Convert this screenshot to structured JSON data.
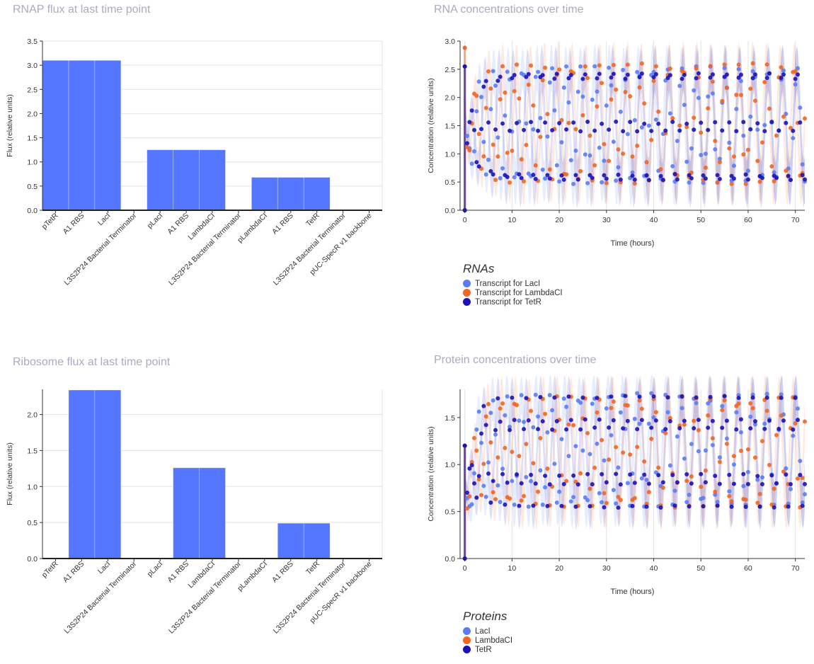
{
  "chart_data": [
    {
      "type": "bar",
      "title": "RNAP flux at last time point",
      "ylabel": "Flux (relative units)",
      "xlabel": "",
      "ylim": [
        0,
        3.5
      ],
      "yticks": [
        "0.0",
        "0.5",
        "1.0",
        "1.5",
        "2.0",
        "2.5",
        "3.0",
        "3.5"
      ],
      "categories": [
        "pTetR",
        "A1 RBS",
        "LacI",
        "L3S2P24 Bacterial Terminator",
        "pLacI",
        "A1 RBS",
        "LambdaCI",
        "L3S2P24 Bacterial Terminator",
        "pLambdaCI",
        "A1 RBS",
        "TetR",
        "L3S2P24 Bacterial Terminator",
        "pUC-SpecR v1 backbone"
      ],
      "values": [
        3.1,
        3.1,
        3.1,
        0,
        1.25,
        1.25,
        1.25,
        0,
        0.68,
        0.68,
        0.68,
        0,
        0
      ],
      "color": "#5577ff"
    },
    {
      "type": "scatter",
      "title": "RNA concentrations over time",
      "xlabel": "Time (hours)",
      "ylabel": "Concentration (relative units)",
      "xlim": [
        -1,
        72
      ],
      "ylim": [
        0,
        3.0
      ],
      "xticks": [
        "0",
        "10",
        "20",
        "30",
        "40",
        "50",
        "60",
        "70"
      ],
      "yticks": [
        "0.0",
        "0.5",
        "1.0",
        "1.5",
        "2.0",
        "2.5",
        "3.0"
      ],
      "legend_title": "RNAs",
      "series": [
        {
          "name": "Transcript for LacI",
          "color": "#5b7cf4",
          "period": 3.06,
          "phase": 0.0,
          "low": 0.48,
          "high": 2.55,
          "peak": 2.55
        },
        {
          "name": "Transcript for LambdaCI",
          "color": "#f26522",
          "period": 2.94,
          "phase": 1.7,
          "low": 0.48,
          "high": 2.6,
          "peak": 2.88
        },
        {
          "name": "Transcript for TetR",
          "color": "#1a12b6",
          "period": 3.0,
          "phase": 3.6,
          "low": 0.45,
          "high": 2.52,
          "peak": 2.55
        }
      ]
    },
    {
      "type": "bar",
      "title": "Ribosome flux at last time point",
      "ylabel": "Flux (relative units)",
      "xlabel": "",
      "ylim": [
        0,
        2.35
      ],
      "yticks": [
        "0.0",
        "0.5",
        "1.0",
        "1.5",
        "2.0"
      ],
      "categories": [
        "pTetR",
        "A1 RBS",
        "LacI",
        "L3S2P24 Bacterial Terminator",
        "pLacI",
        "A1 RBS",
        "LambdaCI",
        "L3S2P24 Bacterial Terminator",
        "pLambdaCI",
        "A1 RBS",
        "TetR",
        "L3S2P24 Bacterial Terminator",
        "pUC-SpecR v1 backbone"
      ],
      "values": [
        0,
        2.34,
        2.34,
        0,
        0,
        1.26,
        1.26,
        0,
        0,
        0.49,
        0.49,
        0,
        0
      ],
      "color": "#5577ff"
    },
    {
      "type": "scatter",
      "title": "Protein concentrations over time",
      "xlabel": "Time (hours)",
      "ylabel": "Concentration (relative units)",
      "xlim": [
        -1,
        72
      ],
      "ylim": [
        0,
        1.8
      ],
      "xticks": [
        "0",
        "10",
        "20",
        "30",
        "40",
        "50",
        "60",
        "70"
      ],
      "yticks": [
        "0.0",
        "0.5",
        "1.0",
        "1.5"
      ],
      "legend_title": "Proteins",
      "series": [
        {
          "name": "LacI",
          "color": "#5b7cf4",
          "period": 3.06,
          "phase": 0.5,
          "low": 0.56,
          "high": 1.75,
          "peak": 1.2
        },
        {
          "name": "LambdaCI",
          "color": "#f26522",
          "period": 2.94,
          "phase": 2.2,
          "low": 0.55,
          "high": 1.72,
          "peak": 1.2
        },
        {
          "name": "TetR",
          "color": "#1a12b6",
          "period": 3.0,
          "phase": 4.1,
          "low": 0.55,
          "high": 1.72,
          "peak": 1.2
        }
      ]
    }
  ]
}
